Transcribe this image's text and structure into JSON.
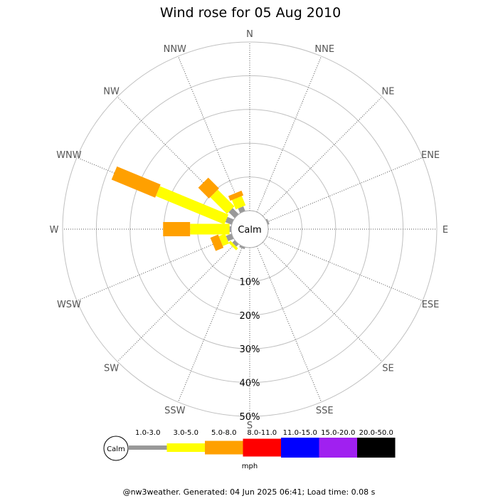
{
  "title": "Wind rose for 05 Aug 2010",
  "footer": "@nw3weather. Generated: 04 Jun 2025 06:41; Load time: 0.08 s",
  "center_label": "Calm",
  "unit_label": "mph",
  "legend": {
    "calm_label": "Calm",
    "bins": [
      {
        "label": "1.0-3.0",
        "color": "#999999"
      },
      {
        "label": "3.0-5.0",
        "color": "#ffff00"
      },
      {
        "label": "5.0-8.0",
        "color": "#ffa000"
      },
      {
        "label": "8.0-11.0",
        "color": "#ff0000"
      },
      {
        "label": "11.0-15.0",
        "color": "#0000ff"
      },
      {
        "label": "15.0-20.0",
        "color": "#a020f0"
      },
      {
        "label": "20.0-50.0",
        "color": "#000000"
      }
    ]
  },
  "chart_data": {
    "type": "wind-rose",
    "title": "Wind rose for 05 Aug 2010",
    "unit": "mph",
    "directions": [
      "N",
      "NNE",
      "NE",
      "ENE",
      "E",
      "ESE",
      "SE",
      "SSE",
      "S",
      "SSW",
      "SW",
      "WSW",
      "W",
      "WNW",
      "NW",
      "NNW"
    ],
    "radial_ticks": [
      "10%",
      "20%",
      "30%",
      "40%",
      "50%"
    ],
    "radial_max": 50,
    "bins": [
      "1.0-3.0",
      "3.0-5.0",
      "5.0-8.0",
      "8.0-11.0",
      "11.0-15.0",
      "15.0-20.0",
      "20.0-50.0"
    ],
    "series": [
      {
        "direction": "N",
        "values": [
          0,
          0,
          0,
          0,
          0,
          0,
          0
        ]
      },
      {
        "direction": "NNE",
        "values": [
          0,
          0,
          0,
          0,
          0,
          0,
          0
        ]
      },
      {
        "direction": "NE",
        "values": [
          0,
          0,
          0,
          0,
          0,
          0,
          0
        ]
      },
      {
        "direction": "ENE",
        "values": [
          0.5,
          0,
          0,
          0,
          0,
          0,
          0
        ]
      },
      {
        "direction": "E",
        "values": [
          0,
          0,
          0,
          0,
          0,
          0,
          0
        ]
      },
      {
        "direction": "ESE",
        "values": [
          0,
          0,
          0,
          0,
          0,
          0,
          0
        ]
      },
      {
        "direction": "SE",
        "values": [
          0,
          0,
          0,
          0,
          0,
          0,
          0
        ]
      },
      {
        "direction": "SSE",
        "values": [
          0,
          0,
          0,
          0,
          0,
          0,
          0
        ]
      },
      {
        "direction": "S",
        "values": [
          0,
          0,
          0,
          0,
          0,
          0,
          0
        ]
      },
      {
        "direction": "SSW",
        "values": [
          0.6,
          0,
          0,
          0,
          0,
          0,
          0
        ]
      },
      {
        "direction": "SW",
        "values": [
          1.0,
          0.8,
          0,
          0,
          0,
          0,
          0
        ]
      },
      {
        "direction": "WSW",
        "values": [
          1.8,
          2.0,
          2.5,
          0,
          0,
          0,
          0
        ]
      },
      {
        "direction": "W",
        "values": [
          0.5,
          11.7,
          8.0,
          0,
          0,
          0,
          0
        ]
      },
      {
        "direction": "WNW",
        "values": [
          2.0,
          22.0,
          14.0,
          0,
          0,
          0,
          0
        ]
      },
      {
        "direction": "NW",
        "values": [
          2.5,
          7.0,
          4.5,
          0,
          0,
          0,
          0
        ]
      },
      {
        "direction": "NNW",
        "values": [
          1.5,
          3.0,
          1.5,
          0,
          0,
          0,
          0
        ]
      }
    ]
  }
}
